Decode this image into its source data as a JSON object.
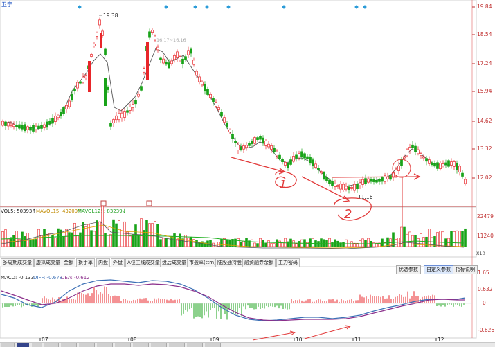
{
  "title": "卫宁",
  "price_axis": [
    "19.84",
    "18.54",
    "17.24",
    "15.94",
    "14.62",
    "13.32",
    "12.02"
  ],
  "price_high_label": "19.38",
  "price_low_label": "11.16",
  "faint_label": "16.17~16.16",
  "hand_marks": [
    "1",
    "2"
  ],
  "volume_legend": {
    "vol5": "VOL5: 50393↑",
    "mavol15": "MAVOL15: 43209↑",
    "mavol125": "MAVOL125: 83239↓"
  },
  "volume_axis": [
    "22479",
    "11240"
  ],
  "volume_unit": "X10",
  "indicator_tabs": [
    "多周期成交量",
    "虚拟成交量",
    "金额",
    "换手率",
    "内盘",
    "外盘",
    "A位主线成交量",
    "盘后成交量",
    "市盈率(ttm)",
    "陆股通持股",
    "融资融券余额",
    "主力密码"
  ],
  "param_buttons": [
    "优选参数",
    "自定义参数",
    "指标说明"
  ],
  "macd_legend": {
    "macd": "MACD: -0.133",
    "diff": "DIFF: -0.678",
    "dea": "DEA: -0.612"
  },
  "macd_axis": [
    "1.65",
    "0.632",
    "0",
    "-0.626"
  ],
  "months": [
    "07",
    "08",
    "09",
    "10",
    "11",
    "12"
  ],
  "colors": {
    "up": "#e8262a",
    "down": "#19a319",
    "ma5": "#444444",
    "mavol15": "#e0a000",
    "mavol125": "#20b020",
    "diff": "#3b6fb5",
    "dea": "#8b2f8b",
    "pen": "#e23a3a"
  }
}
